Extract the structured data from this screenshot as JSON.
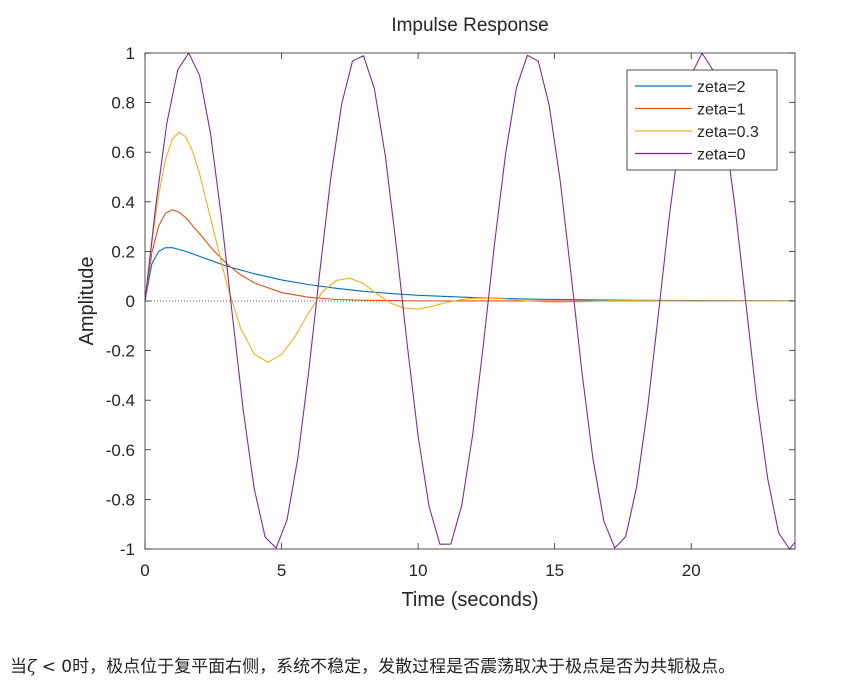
{
  "chart_data": {
    "type": "line",
    "title": "Impulse Response",
    "xlabel": "Time (seconds)",
    "ylabel": "Amplitude",
    "xlim": [
      0,
      23.8
    ],
    "ylim": [
      -1,
      1
    ],
    "xticks": [
      0,
      5,
      10,
      15,
      20
    ],
    "xtick_labels": [
      "0",
      "5",
      "10",
      "15",
      "20"
    ],
    "yticks": [
      -1,
      -0.8,
      -0.6,
      -0.4,
      -0.2,
      0,
      0.2,
      0.4,
      0.6,
      0.8,
      1
    ],
    "ytick_labels": [
      "-1",
      "-0.8",
      "-0.6",
      "-0.4",
      "-0.2",
      "0",
      "0.2",
      "0.4",
      "0.6",
      "0.8",
      "1"
    ],
    "grid": false,
    "legend_position": "top-right",
    "series": [
      {
        "name": "zeta=2",
        "color": "#0072BD",
        "x": [
          0,
          0.25,
          0.5,
          0.75,
          1,
          1.5,
          2,
          2.5,
          3,
          4,
          5,
          6,
          7,
          8,
          9,
          10,
          12,
          14,
          16,
          18,
          20,
          23.8
        ],
        "y": [
          0,
          0.15,
          0.2,
          0.215,
          0.215,
          0.2,
          0.18,
          0.16,
          0.14,
          0.11,
          0.085,
          0.066,
          0.051,
          0.039,
          0.03,
          0.023,
          0.014,
          0.008,
          0.005,
          0.003,
          0.002,
          0.001
        ]
      },
      {
        "name": "zeta=1",
        "color": "#D95319",
        "x": [
          0,
          0.25,
          0.5,
          0.75,
          1,
          1.25,
          1.5,
          2,
          2.5,
          3,
          3.5,
          4,
          5,
          6,
          7,
          8,
          10,
          12,
          23.8
        ],
        "y": [
          0,
          0.195,
          0.303,
          0.354,
          0.368,
          0.358,
          0.335,
          0.271,
          0.205,
          0.149,
          0.106,
          0.073,
          0.034,
          0.015,
          0.006,
          0.003,
          0.0005,
          0.0001,
          0
        ]
      },
      {
        "name": "zeta=0.3",
        "color": "#EDB120",
        "x": [
          0,
          0.25,
          0.5,
          0.75,
          1,
          1.25,
          1.5,
          1.75,
          2,
          2.5,
          3,
          3.5,
          4,
          4.5,
          5,
          5.5,
          6,
          6.5,
          7,
          7.5,
          8,
          8.5,
          9,
          9.5,
          10,
          10.5,
          11,
          11.5,
          12,
          12.5,
          13,
          13.5,
          14,
          14.5,
          15,
          16,
          17,
          18,
          19,
          20,
          21,
          22,
          23.8
        ],
        "y": [
          0,
          0.234,
          0.428,
          0.569,
          0.653,
          0.681,
          0.661,
          0.601,
          0.512,
          0.29,
          0.066,
          -0.109,
          -0.214,
          -0.247,
          -0.216,
          -0.142,
          -0.046,
          0.038,
          0.083,
          0.092,
          0.07,
          0.028,
          -0.009,
          -0.029,
          -0.032,
          -0.022,
          -0.007,
          0.004,
          0.011,
          0.012,
          0.01,
          0.005,
          0.0,
          -0.003,
          -0.004,
          -0.003,
          0.001,
          0.0015,
          0.0005,
          -0.0005,
          -0.0003,
          0,
          0
        ]
      },
      {
        "name": "zeta=0",
        "color": "#7E2F8E",
        "x": [
          0,
          0.4,
          0.8,
          1.2,
          1.6,
          2.0,
          2.4,
          2.8,
          3.2,
          3.6,
          4.0,
          4.4,
          4.8,
          5.2,
          5.6,
          6.0,
          6.4,
          6.8,
          7.2,
          7.6,
          8.0,
          8.4,
          8.8,
          9.2,
          9.6,
          10.0,
          10.4,
          10.8,
          11.2,
          11.6,
          12.0,
          12.4,
          12.8,
          13.2,
          13.6,
          14.0,
          14.4,
          14.8,
          15.2,
          15.6,
          16.0,
          16.4,
          16.8,
          17.2,
          17.6,
          18.0,
          18.4,
          18.8,
          19.2,
          19.6,
          20.0,
          20.4,
          20.8,
          21.2,
          21.6,
          22.0,
          22.4,
          22.8,
          23.2,
          23.6,
          23.8
        ],
        "y": [
          0,
          0.389,
          0.717,
          0.932,
          1.0,
          0.909,
          0.675,
          0.335,
          -0.058,
          -0.443,
          -0.757,
          -0.952,
          -0.996,
          -0.883,
          -0.631,
          -0.279,
          0.117,
          0.494,
          0.794,
          0.968,
          0.989,
          0.855,
          0.585,
          0.223,
          -0.175,
          -0.544,
          -0.828,
          -0.981,
          -0.98,
          -0.823,
          -0.537,
          -0.166,
          0.232,
          0.591,
          0.86,
          0.991,
          0.967,
          0.789,
          0.487,
          0.108,
          -0.288,
          -0.635,
          -0.887,
          -0.996,
          -0.95,
          -0.751,
          -0.435,
          -0.05,
          0.343,
          0.677,
          0.913,
          0.999,
          0.93,
          0.711,
          0.382,
          -0.008,
          -0.397,
          -0.716,
          -0.935,
          -1.0,
          -0.973
        ]
      }
    ]
  },
  "caption": {
    "prefix": "当",
    "symbol": "ζ",
    "relation": " < 0",
    "text": "时，极点位于复平面右侧，系统不稳定，发散过程是否震荡取决于极点是否为共轭极点。"
  }
}
